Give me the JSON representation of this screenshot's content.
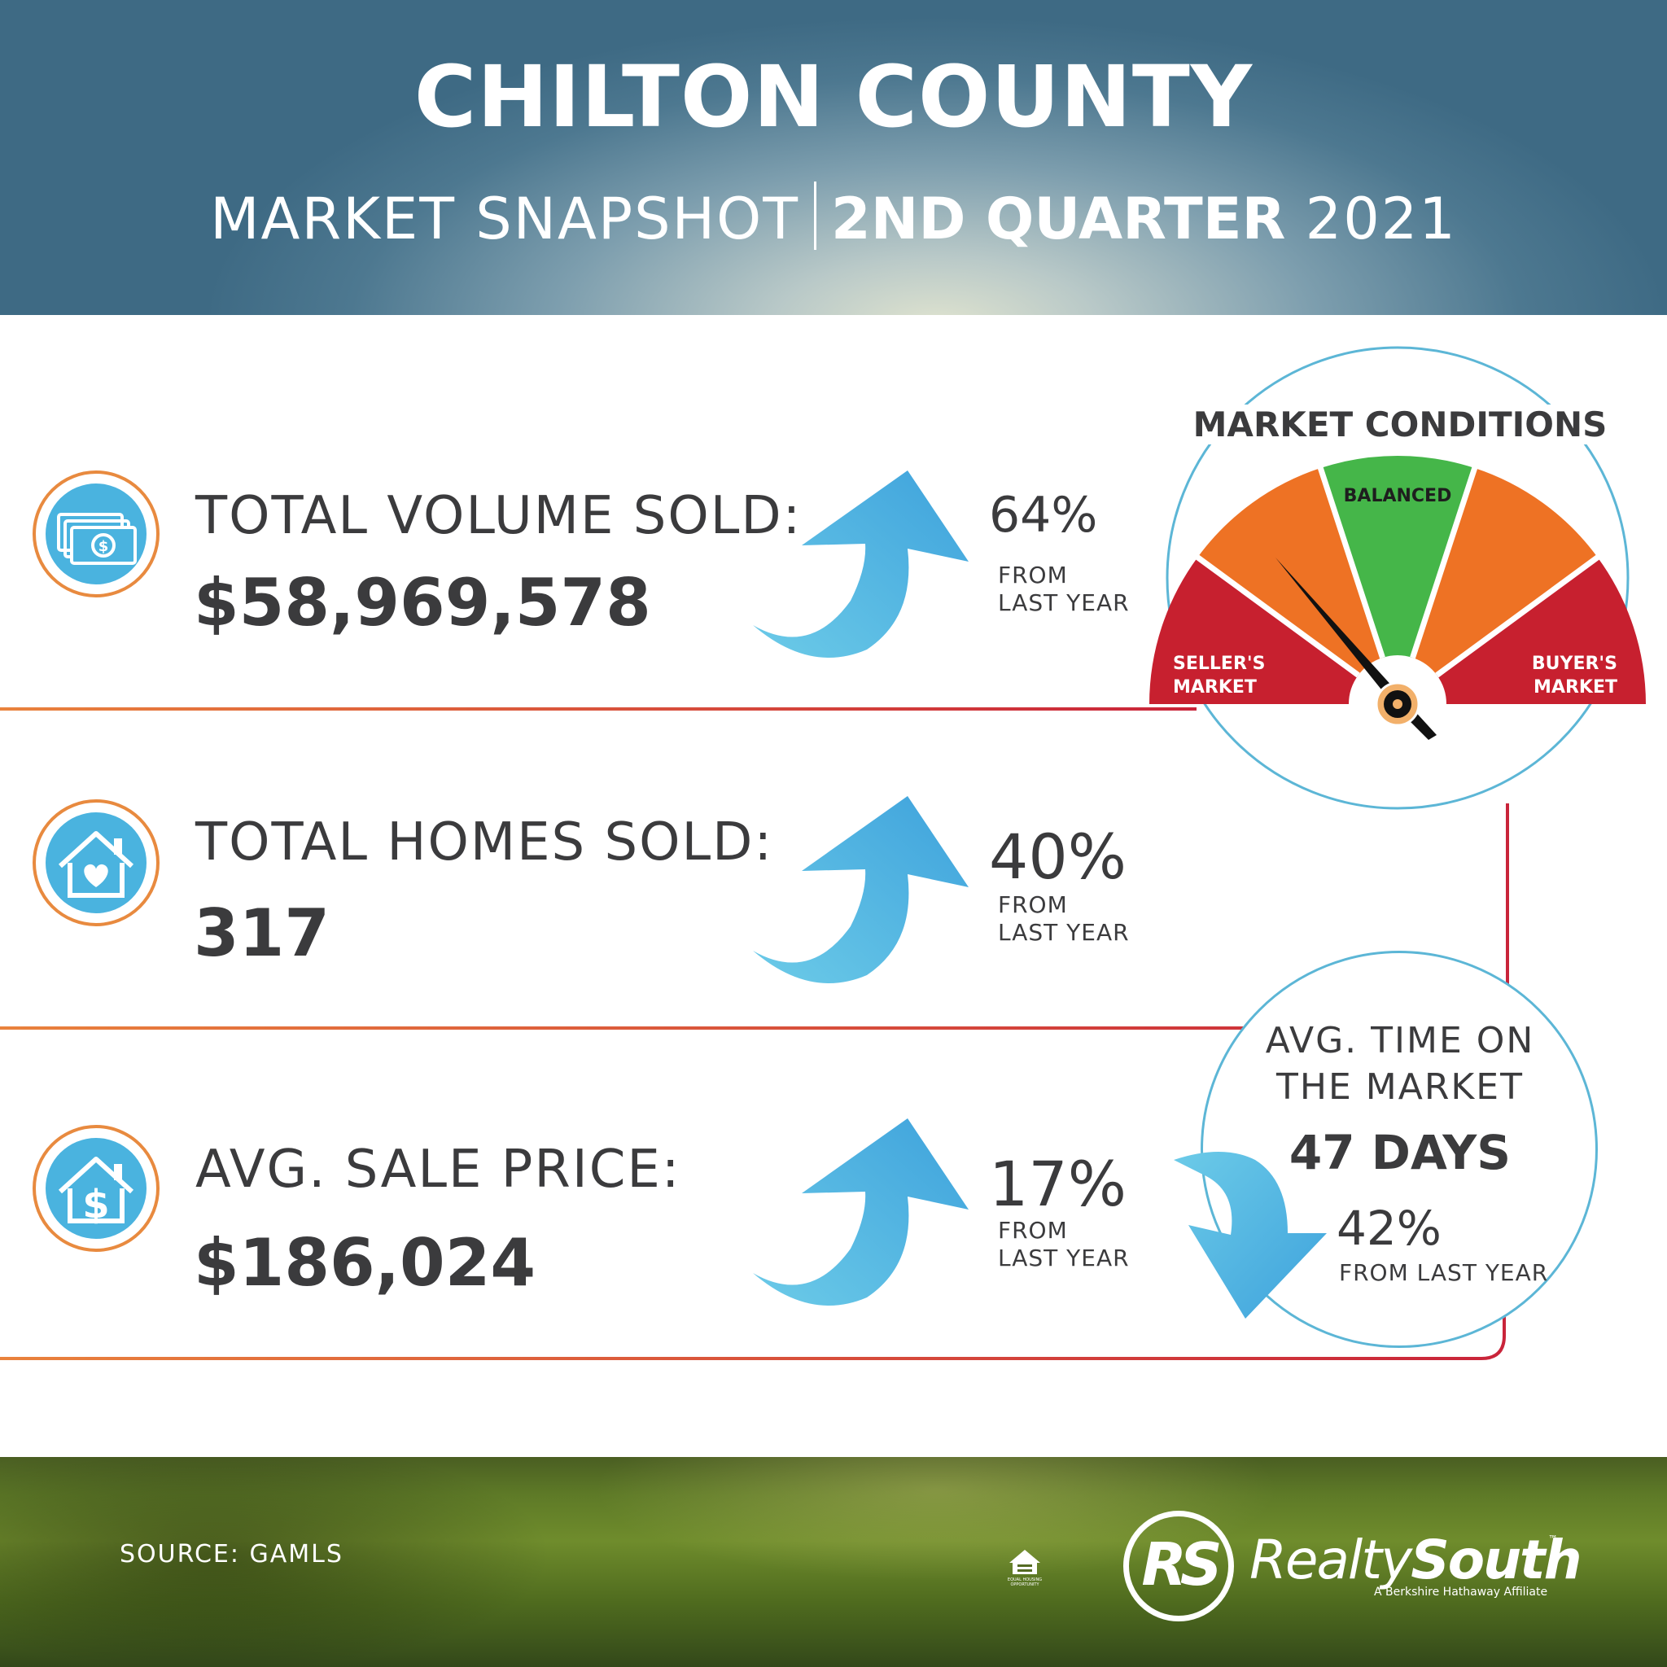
{
  "header": {
    "title": "CHILTON COUNTY",
    "subtitle_left": "MARKET SNAPSHOT",
    "subtitle_quarter": "2ND QUARTER",
    "subtitle_year": "2021"
  },
  "stats": [
    {
      "label": "TOTAL VOLUME SOLD:",
      "value": "$58,969,578",
      "change": "64%",
      "from_line1": "FROM",
      "from_line2": "LAST YEAR",
      "icon": "money-icon",
      "direction": "up"
    },
    {
      "label": "TOTAL HOMES SOLD:",
      "value": "317",
      "change": "40%",
      "from_line1": "FROM",
      "from_line2": "LAST YEAR",
      "icon": "house-heart-icon",
      "direction": "up"
    },
    {
      "label": "AVG. SALE PRICE:",
      "value": "$186,024",
      "change": "17%",
      "from_line1": "FROM",
      "from_line2": "LAST YEAR",
      "icon": "house-dollar-icon",
      "direction": "up"
    }
  ],
  "market_conditions": {
    "title": "MARKET CONDITIONS",
    "segments": [
      "SELLER'S MARKET",
      "BALANCED",
      "BUYER'S MARKET"
    ],
    "sellers_line1": "SELLER'S",
    "sellers_line2": "MARKET",
    "balanced": "BALANCED",
    "buyers_line1": "BUYER'S",
    "buyers_line2": "MARKET",
    "indicator": "seller's market",
    "colors": {
      "sellers": "#c7202f",
      "transition": "#ee7224",
      "balanced": "#45b649"
    }
  },
  "time_on_market": {
    "label_line1": "AVG. TIME ON",
    "label_line2": "THE MARKET",
    "value": "47 DAYS",
    "change": "42%",
    "from": "FROM LAST YEAR",
    "direction": "down"
  },
  "footer": {
    "source": "SOURCE: GAMLS",
    "logo_initials": "RS",
    "logo_name_light": "Realty",
    "logo_name_bold": "South",
    "logo_tm": "™",
    "logo_tagline": "A Berkshire Hathaway Affiliate",
    "eho_label": "EQUAL HOUSING OPPORTUNITY"
  },
  "colors": {
    "accent_blue": "#4ab3df",
    "line_orange": "#e9823c",
    "line_red": "#c9243a",
    "text_dark": "#3b3b3d"
  }
}
